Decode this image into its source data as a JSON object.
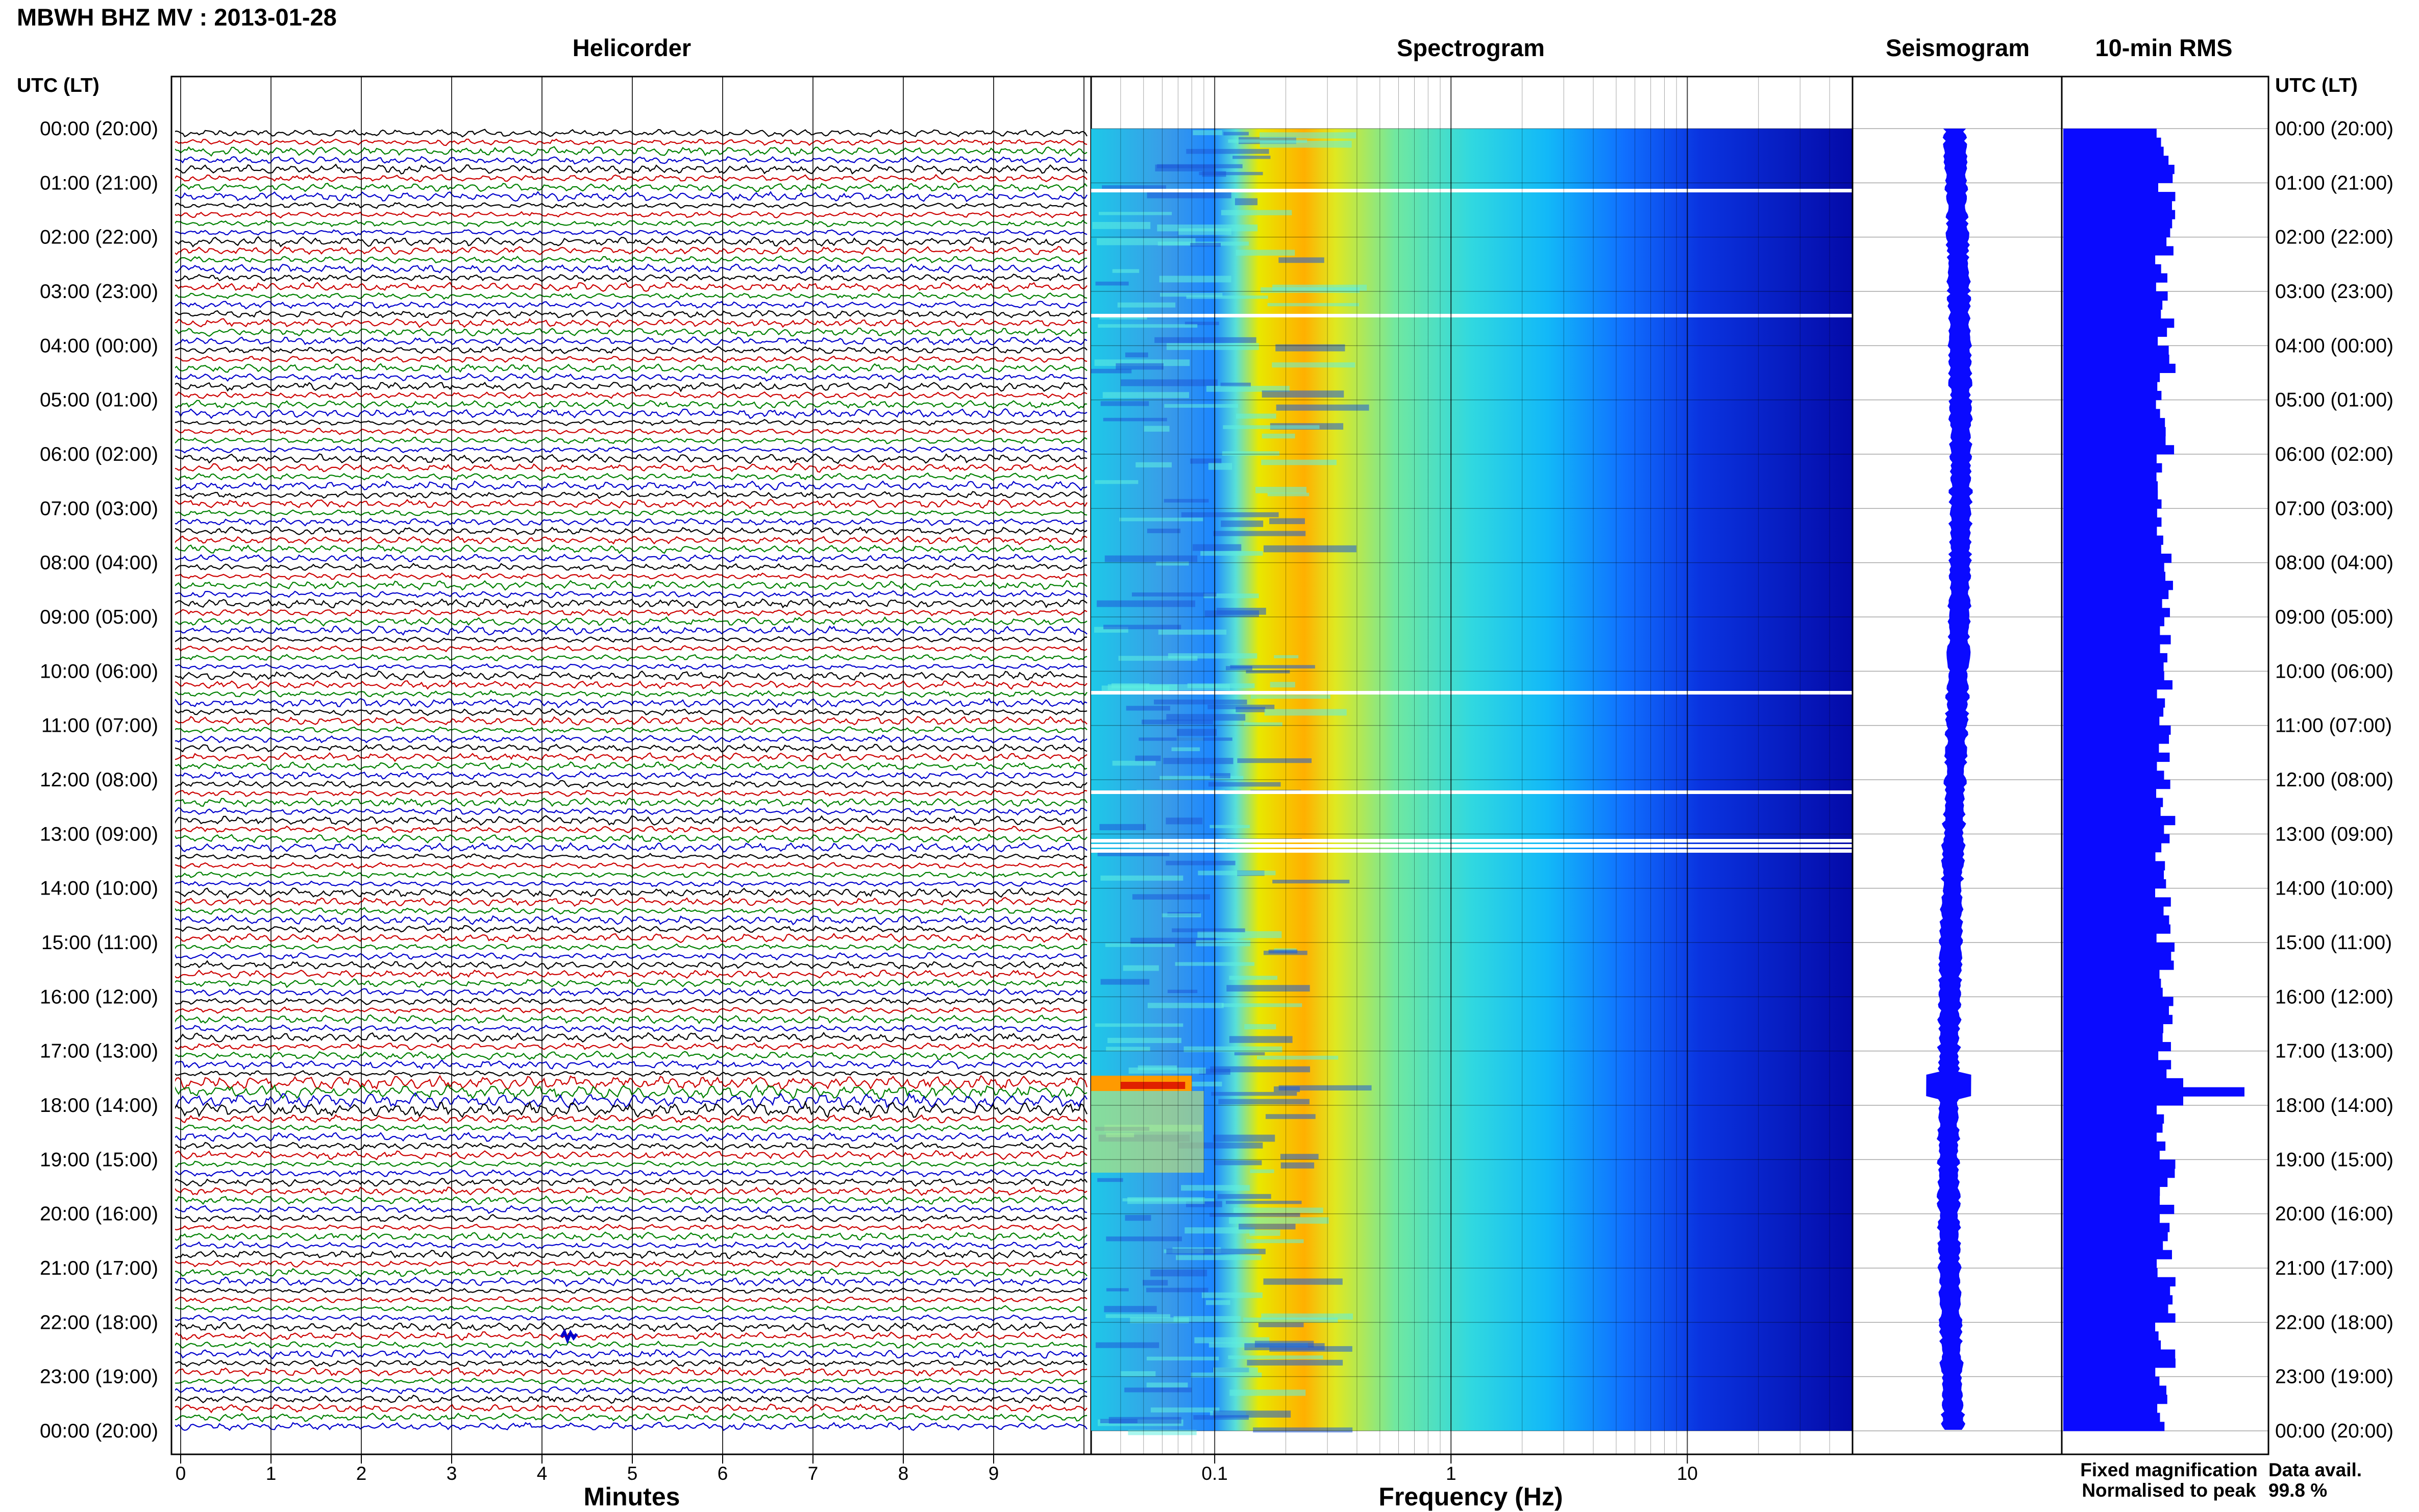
{
  "header": {
    "station_title": "MBWH BHZ MV : 2013-01-28"
  },
  "panels": {
    "helicorder": "Helicorder",
    "spectrogram": "Spectrogram",
    "seismogram": "Seismogram",
    "rms": "10-min RMS"
  },
  "axis_left_title": "UTC (LT)",
  "axis_right_title": "UTC (LT)",
  "time_labels": [
    "00:00 (20:00)",
    "01:00 (21:00)",
    "02:00 (22:00)",
    "03:00 (23:00)",
    "04:00 (00:00)",
    "05:00 (01:00)",
    "06:00 (02:00)",
    "07:00 (03:00)",
    "08:00 (04:00)",
    "09:00 (05:00)",
    "10:00 (06:00)",
    "11:00 (07:00)",
    "12:00 (08:00)",
    "13:00 (09:00)",
    "14:00 (10:00)",
    "15:00 (11:00)",
    "16:00 (12:00)",
    "17:00 (13:00)",
    "18:00 (14:00)",
    "19:00 (15:00)",
    "20:00 (16:00)",
    "21:00 (17:00)",
    "22:00 (18:00)",
    "23:00 (19:00)",
    "00:00 (20:00)"
  ],
  "helicorder_xlabel": "Minutes",
  "helicorder_ticks": [
    "0",
    "1",
    "2",
    "3",
    "4",
    "5",
    "6",
    "7",
    "8",
    "9"
  ],
  "spectrogram_xlabel": "Frequency (Hz)",
  "spectrogram_ticks": [
    "0.1",
    "1",
    "10"
  ],
  "legend": {
    "fixed": "Fixed magnification",
    "normalised": "Normalised to peak",
    "fixed_color": "#1a1aff",
    "normalised_color": "#ff1a1a"
  },
  "availability": {
    "label": "Data avail.",
    "value": "99.8 %"
  },
  "colors": {
    "trace_cycle": [
      "#000000",
      "#cc0000",
      "#008000",
      "#0000cc"
    ],
    "rms_bar": "#0a0aff",
    "seismogram": "#0a0aff",
    "spectrogram_low": "#00008f",
    "spectrogram_high": "#ff2000"
  },
  "chart_data": [
    {
      "type": "line",
      "title": "Helicorder",
      "xlabel": "Minutes",
      "ylabel": "UTC (LT)",
      "xlim": [
        0,
        10
      ],
      "ylim": [
        "00:00",
        "00:00 next day"
      ],
      "rows_per_hour": 6,
      "row_minutes": 10,
      "color_cycle": [
        "black",
        "red",
        "green",
        "blue"
      ],
      "notable_events": [
        {
          "time_utc": "17:50",
          "note": "higher amplitude row"
        },
        {
          "time_utc": "22:00",
          "minute": 4.3,
          "note": "blue spike"
        }
      ]
    },
    {
      "type": "heatmap",
      "title": "Spectrogram",
      "xlabel": "Frequency (Hz)",
      "x_scale": "log",
      "xlim": [
        0.03,
        50
      ],
      "x_ticks": [
        0.1,
        1,
        10
      ],
      "ylabel": "UTC (LT)",
      "peak_band_hz": [
        0.18,
        0.27
      ],
      "gaps_utc": [
        "01:05",
        "03:25",
        "10:20",
        "12:15",
        "13:05"
      ],
      "low_freq_event": {
        "time_utc": "17:55",
        "freq_hz": [
          0.03,
          0.08
        ]
      }
    },
    {
      "type": "line",
      "title": "Seismogram",
      "ylabel": "UTC (LT)",
      "note": "24-hour compressed trace, amplitude peak near 17:55 UTC"
    },
    {
      "type": "bar",
      "title": "10-min RMS",
      "orientation": "horizontal",
      "ylabel": "UTC (LT)",
      "bin_minutes": 10,
      "typical_relative": 0.6,
      "peak": {
        "time_utc": "17:50",
        "relative": 1.0
      }
    }
  ]
}
